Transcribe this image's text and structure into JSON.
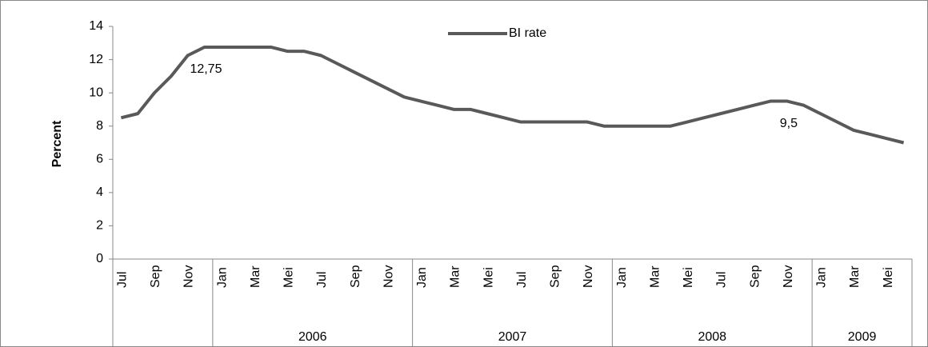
{
  "chart_data": {
    "type": "line",
    "y_label": "Percent",
    "categories": [
      "Jul",
      null,
      "Sep",
      null,
      "Nov",
      null,
      "Jan",
      null,
      "Mar",
      null,
      "Mei",
      null,
      "Jul",
      null,
      "Sep",
      null,
      "Nov",
      null,
      "Jan",
      null,
      "Mar",
      null,
      "Mei",
      null,
      "Jul",
      null,
      "Sep",
      null,
      "Nov",
      null,
      "Jan",
      null,
      "Mar",
      null,
      "Mei",
      null,
      "Jul",
      null,
      "Sep",
      null,
      "Nov",
      null,
      "Jan",
      null,
      "Mar",
      null,
      "Mei",
      null
    ],
    "groups": [
      {
        "label": null,
        "span": 6
      },
      {
        "label": "2006",
        "span": 12
      },
      {
        "label": "2007",
        "span": 12
      },
      {
        "label": "2008",
        "span": 12
      },
      {
        "label": "2009",
        "span": 6
      }
    ],
    "series": [
      {
        "name": "BI rate",
        "color": "#595959",
        "values": [
          8.5,
          8.75,
          10,
          11,
          12.25,
          12.75,
          12.75,
          12.75,
          12.75,
          12.75,
          12.5,
          12.5,
          12.25,
          11.75,
          11.25,
          10.75,
          10.25,
          9.75,
          9.5,
          9.25,
          9,
          9,
          8.75,
          8.5,
          8.25,
          8.25,
          8.25,
          8.25,
          8.25,
          8,
          8,
          8,
          8,
          8,
          8.25,
          8.5,
          8.75,
          9,
          9.25,
          9.5,
          9.5,
          9.25,
          8.75,
          8.25,
          7.75,
          7.5,
          7.25,
          7
        ],
        "value_labels": [
          null,
          null,
          null,
          null,
          null,
          "12,75",
          null,
          null,
          null,
          null,
          null,
          null,
          null,
          null,
          null,
          null,
          null,
          null,
          null,
          null,
          null,
          null,
          null,
          null,
          null,
          null,
          null,
          null,
          null,
          null,
          null,
          null,
          null,
          null,
          null,
          null,
          null,
          null,
          null,
          null,
          "9,5",
          null,
          null,
          null,
          null,
          null,
          null,
          null
        ]
      }
    ],
    "ylim": [
      0,
      14
    ],
    "yticks": [
      0,
      2,
      4,
      6,
      8,
      10,
      12,
      14
    ],
    "legend": "top"
  }
}
